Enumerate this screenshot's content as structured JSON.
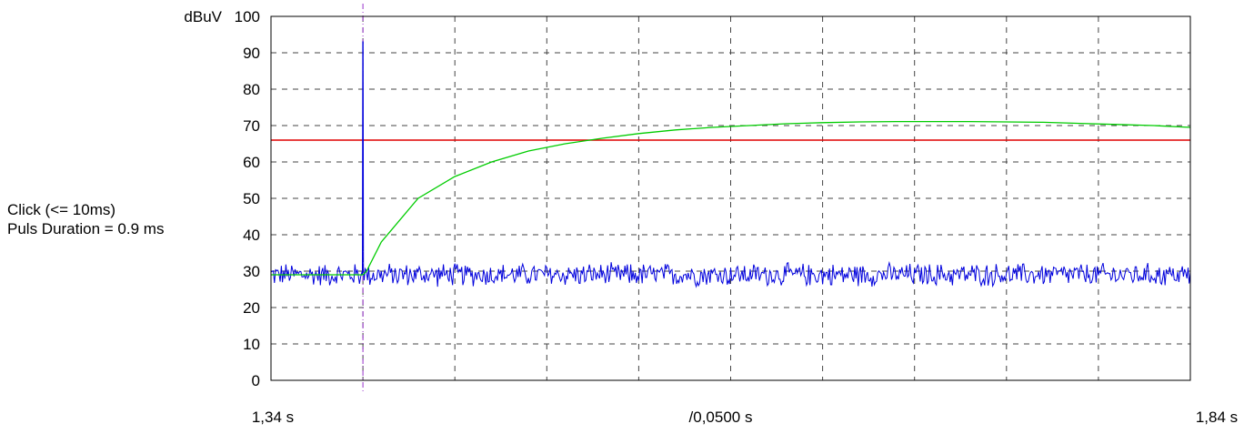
{
  "side_note": {
    "line1": "Click (<= 10ms)",
    "line2": "Puls Duration = 0.9 ms"
  },
  "chart_data": {
    "type": "line",
    "ylabel": "dBuV",
    "ylim": [
      0,
      100
    ],
    "y_ticks": [
      "0",
      "10",
      "20",
      "30",
      "40",
      "50",
      "60",
      "70",
      "80",
      "90",
      "100"
    ],
    "xlim": [
      1.34,
      1.84
    ],
    "x_tick_labels": {
      "left": "1,34 s",
      "center": "/0,0500 s",
      "right": "1,84 s"
    },
    "x_grid_step": 0.05,
    "grid": true,
    "marker_x": 1.39,
    "limit_line": {
      "y": 66,
      "color": "#e00000"
    },
    "series": [
      {
        "color": "#0000dd",
        "baseline": 29,
        "noise_amplitude": 3,
        "spike": {
          "x": 1.39,
          "y": 93,
          "duration_s": 0.0009
        }
      },
      {
        "color": "#00cc00",
        "x": [
          1.34,
          1.39,
          1.392,
          1.4,
          1.42,
          1.44,
          1.46,
          1.48,
          1.5,
          1.52,
          1.54,
          1.56,
          1.58,
          1.6,
          1.62,
          1.64,
          1.66,
          1.68,
          1.7,
          1.72,
          1.74,
          1.76,
          1.78,
          1.8,
          1.82,
          1.84
        ],
        "y": [
          29,
          29,
          30,
          38,
          50,
          56,
          60,
          63,
          65,
          66.5,
          67.8,
          68.8,
          69.5,
          70,
          70.5,
          70.8,
          71,
          71.1,
          71.1,
          71.1,
          71,
          70.9,
          70.6,
          70.3,
          70,
          69.5
        ]
      }
    ]
  }
}
